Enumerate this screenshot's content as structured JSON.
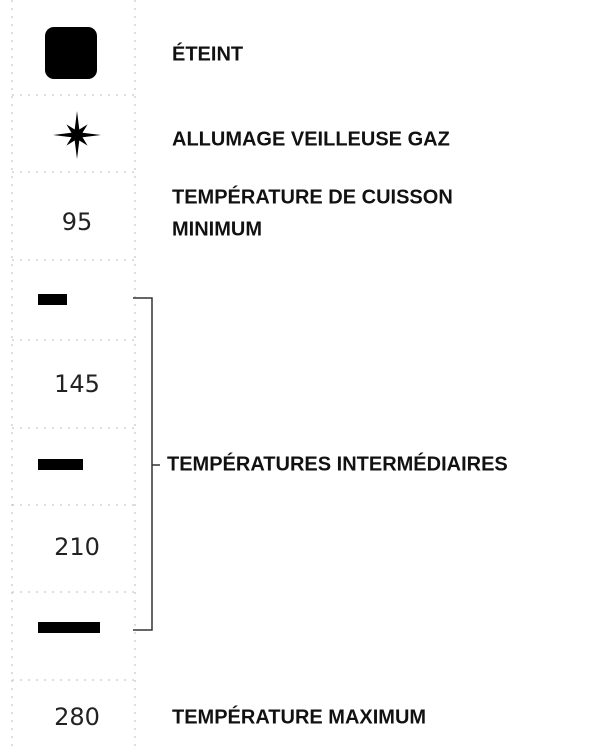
{
  "settings": [
    {
      "label": "ÉTEINT"
    },
    {
      "label": "ALLUMAGE VEILLEUSE GAZ"
    },
    {
      "symbol": "95",
      "label_lines": [
        "TEMPÉRATURE DE CUISSON",
        "MINIMUM"
      ]
    },
    {
      "symbol": "145"
    },
    {
      "symbol": "210"
    },
    {
      "symbol": "280",
      "label": "TEMPÉRATURE MAXIMUM"
    }
  ],
  "bracket_label": "TEMPÉRATURES INTERMÉDIAIRES"
}
